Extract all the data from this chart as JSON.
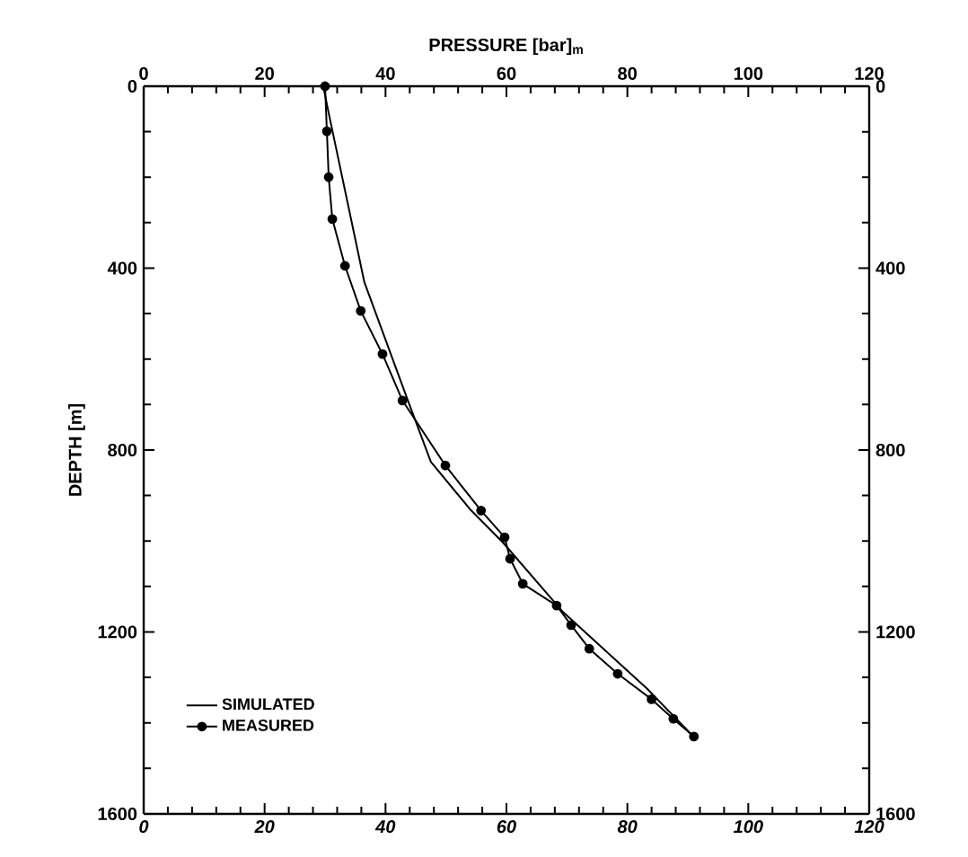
{
  "chart_data": {
    "type": "line",
    "xlabel": "PRESSURE [bar]$_{m}$",
    "ylabel": "DEPTH [m]",
    "xlim": [
      0,
      120
    ],
    "xticks": [
      0,
      20,
      40,
      60,
      80,
      100,
      120
    ],
    "x2lim": [
      0,
      120
    ],
    "x2ticks": [
      0,
      20,
      40,
      60,
      80,
      100,
      120
    ],
    "ylim": [
      1600,
      0
    ],
    "yticks": [
      0,
      400,
      800,
      1200,
      1600
    ],
    "y2lim": [
      1600,
      0
    ],
    "y2ticks": [
      0,
      400,
      800,
      1200,
      1600
    ],
    "grid": false,
    "legend": "bottom left",
    "series": [
      {
        "name": "SIMULATED",
        "color": "#000000",
        "marker": "none",
        "x": [
          29.7,
          30.6,
          36.5,
          43.7,
          47.5,
          54.1,
          59.4,
          69.2,
          83.2,
          90.5
        ],
        "values": [
          0,
          59,
          431,
          691,
          826,
          932,
          1003,
          1154,
          1324,
          1424
        ]
      },
      {
        "name": "MEASURED",
        "color": "#000000",
        "marker": "circle",
        "x": [
          30,
          30.3,
          30.6,
          31.2,
          33.3,
          35.9,
          39.5,
          42.8,
          49.9,
          55.8,
          59.7,
          60.6,
          62.7,
          68.3,
          70.7,
          73.7,
          78.4,
          84,
          87.6,
          91
        ],
        "values": [
          0,
          99,
          200,
          292,
          395,
          494,
          589,
          691,
          834,
          933,
          992,
          1039,
          1094,
          1142,
          1185,
          1237,
          1292,
          1348,
          1391,
          1430
        ]
      }
    ]
  }
}
